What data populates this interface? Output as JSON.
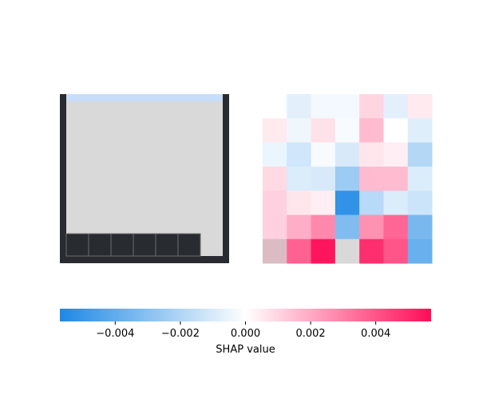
{
  "chart_data": {
    "type": "heatmap",
    "game_board": {
      "frame_color": "#282c30",
      "background_color": "#d9d9d9",
      "top_strip_color": "#c6defa",
      "block_color": "#282c30",
      "block_outline_color": "#6c6c6c",
      "bottom_row_blocks": 6,
      "bottom_row_width": 7
    },
    "shap_heatmap": {
      "rows": 7,
      "cols": 7,
      "values": [
        [
          0.0,
          -0.0007,
          -0.0003,
          -0.0003,
          0.001,
          -0.0007,
          0.0005
        ],
        [
          0.0005,
          -0.0004,
          0.0007,
          -0.0002,
          0.0016,
          0.0,
          -0.0008
        ],
        [
          -0.0005,
          -0.0012,
          -0.0002,
          -0.001,
          0.0006,
          0.0004,
          -0.0019
        ],
        [
          0.0009,
          -0.0009,
          -0.001,
          -0.0025,
          0.0016,
          0.0016,
          -0.0009
        ],
        [
          0.0011,
          0.0006,
          0.0004,
          -0.0052,
          -0.0018,
          -0.0009,
          -0.0013
        ],
        [
          0.0011,
          0.0019,
          0.0028,
          -0.0032,
          0.0026,
          0.0036,
          -0.0034
        ],
        [
          0.0,
          0.0037,
          0.0055,
          0.0,
          0.0049,
          0.004,
          -0.0038
        ]
      ],
      "masked_cells": [
        [
          6,
          0
        ],
        [
          6,
          3
        ]
      ],
      "masked_colors": [
        "#dbbcc5",
        "#d9d9d9"
      ]
    },
    "colorbar": {
      "range": [
        -0.0057,
        0.0057
      ],
      "colors": [
        "#1e88e5",
        "#ffffff",
        "#ff0d57"
      ],
      "ticks": [
        -0.004,
        -0.002,
        0.0,
        0.002,
        0.004
      ],
      "tick_labels": [
        "−0.004",
        "−0.002",
        "0.000",
        "0.002",
        "0.004"
      ],
      "label": "SHAP value"
    }
  }
}
